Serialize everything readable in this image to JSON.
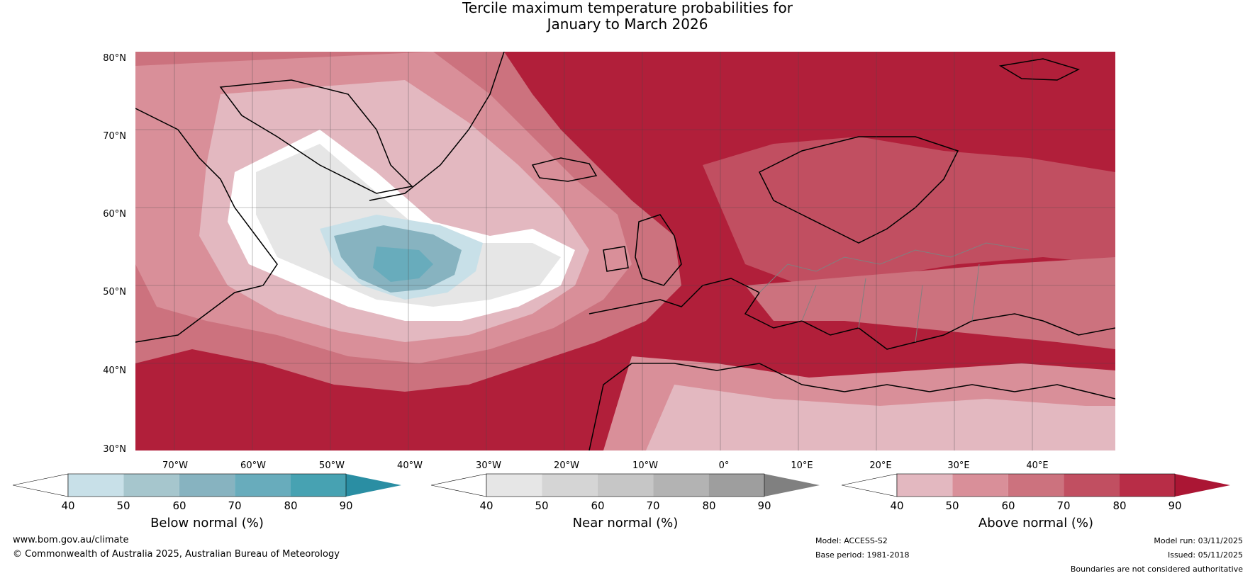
{
  "title": {
    "line1": "Tercile maximum temperature probabilities for",
    "line2": "January to March 2026"
  },
  "map": {
    "lat_labels": [
      "80°N",
      "70°N",
      "60°N",
      "50°N",
      "40°N",
      "30°N"
    ],
    "lon_labels": [
      "70°W",
      "60°W",
      "50°W",
      "40°W",
      "30°W",
      "20°W",
      "10°W",
      "0°",
      "10°E",
      "20°E",
      "30°E",
      "40°E"
    ],
    "colors": {
      "ocean_background": "#b11f3a",
      "coast": "#000000",
      "borders": "#808080",
      "grid": "#444444"
    }
  },
  "colorbars": [
    {
      "name": "below",
      "title": "Below normal (%)",
      "ticks": [
        "40",
        "50",
        "60",
        "70",
        "80",
        "90"
      ],
      "colors": [
        "#ffffff",
        "#c8e0e8",
        "#a6c6cd",
        "#87b3c0",
        "#68acbc",
        "#47a2b2",
        "#2a8ea3"
      ]
    },
    {
      "name": "near",
      "title": "Near normal (%)",
      "ticks": [
        "40",
        "50",
        "60",
        "70",
        "80",
        "90"
      ],
      "colors": [
        "#ffffff",
        "#e6e6e6",
        "#d5d5d5",
        "#c6c6c6",
        "#b3b3b3",
        "#9e9e9e",
        "#808080"
      ]
    },
    {
      "name": "above",
      "title": "Above normal (%)",
      "ticks": [
        "40",
        "50",
        "60",
        "70",
        "80",
        "90"
      ],
      "colors": [
        "#ffffff",
        "#e3b8c0",
        "#d98f99",
        "#cc727e",
        "#c14f61",
        "#b82d47",
        "#ab1634"
      ]
    }
  ],
  "footer": {
    "website": "www.bom.gov.au/climate",
    "copyright": "© Commonwealth of Australia 2025, Australian Bureau of Meteorology",
    "model": "Model: ACCESS-S2",
    "base_period": "Base period: 1981-2018",
    "model_run": "Model run: 03/11/2025",
    "issued": "Issued: 05/11/2025",
    "disclaimer": "Boundaries are not considered authoritative"
  }
}
